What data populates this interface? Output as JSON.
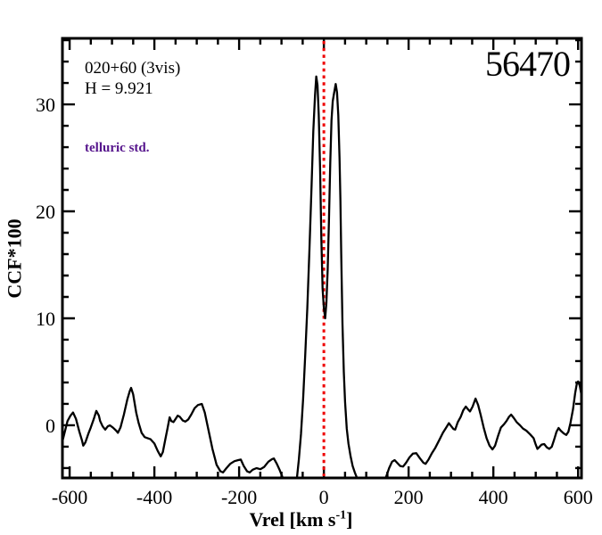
{
  "figure": {
    "annotations": {
      "target_label": "020+60 (3vis)",
      "magnitude_label": "H = 9.921",
      "classification_label": "telluric std.",
      "mjd_label": "56470"
    },
    "colors": {
      "background": "#ffffff",
      "curve": "#000000",
      "frame": "#000000",
      "text": "#000000",
      "red_line": "#ee0000",
      "classification_text": "#55148c"
    }
  },
  "chart_data": {
    "type": "line",
    "title": "",
    "ylabel": "CCF*100",
    "xlabel_parts": {
      "main": "Vrel [km s",
      "sup": "-1",
      "end": "]"
    },
    "xlim": [
      -617,
      608
    ],
    "ylim": [
      -4.92,
      36.17
    ],
    "x_major_ticks": [
      -600,
      -400,
      -200,
      0,
      200,
      400,
      600
    ],
    "x_tick_labels": [
      "-600",
      "-400",
      "-200",
      "0",
      "200",
      "400",
      "600"
    ],
    "x_minor_step": 50,
    "y_major_ticks": [
      0,
      10,
      20,
      30
    ],
    "y_tick_labels": [
      "0",
      "10",
      "20",
      "30"
    ],
    "y_minor_step": 2,
    "grid": false,
    "legend": null,
    "red_dotted_line_x": 0,
    "series": [
      {
        "name": "ccf",
        "points": [
          [
            -617,
            -1.5
          ],
          [
            -612,
            -0.7
          ],
          [
            -605,
            0.4
          ],
          [
            -598,
            0.9
          ],
          [
            -592,
            1.2
          ],
          [
            -585,
            0.6
          ],
          [
            -577,
            -0.6
          ],
          [
            -571,
            -1.4
          ],
          [
            -568,
            -1.9
          ],
          [
            -563,
            -1.6
          ],
          [
            -556,
            -0.8
          ],
          [
            -550,
            -0.2
          ],
          [
            -543,
            0.6
          ],
          [
            -537,
            1.35
          ],
          [
            -531,
            0.9
          ],
          [
            -528,
            0.4
          ],
          [
            -522,
            -0.1
          ],
          [
            -516,
            -0.4
          ],
          [
            -510,
            -0.1
          ],
          [
            -505,
            0
          ],
          [
            -498,
            -0.2
          ],
          [
            -490,
            -0.5
          ],
          [
            -486,
            -0.7
          ],
          [
            -480,
            -0.2
          ],
          [
            -472,
            1
          ],
          [
            -464,
            2.4
          ],
          [
            -458,
            3.2
          ],
          [
            -455,
            3.5
          ],
          [
            -450,
            2.9
          ],
          [
            -443,
            1.2
          ],
          [
            -437,
            0.2
          ],
          [
            -430,
            -0.7
          ],
          [
            -423,
            -1.1
          ],
          [
            -416,
            -1.2
          ],
          [
            -409,
            -1.3
          ],
          [
            -400,
            -1.7
          ],
          [
            -392,
            -2.4
          ],
          [
            -385,
            -2.9
          ],
          [
            -380,
            -2.5
          ],
          [
            -374,
            -1.3
          ],
          [
            -369,
            -0.3
          ],
          [
            -364,
            0.75
          ],
          [
            -360,
            0.4
          ],
          [
            -355,
            0.3
          ],
          [
            -350,
            0.6
          ],
          [
            -345,
            0.9
          ],
          [
            -340,
            0.8
          ],
          [
            -333,
            0.45
          ],
          [
            -327,
            0.35
          ],
          [
            -320,
            0.55
          ],
          [
            -313,
            1
          ],
          [
            -305,
            1.6
          ],
          [
            -297,
            1.9
          ],
          [
            -288,
            2
          ],
          [
            -281,
            1.2
          ],
          [
            -273,
            -0.3
          ],
          [
            -263,
            -2.2
          ],
          [
            -253,
            -3.7
          ],
          [
            -244,
            -4.3
          ],
          [
            -238,
            -4.4
          ],
          [
            -230,
            -4
          ],
          [
            -221,
            -3.6
          ],
          [
            -211,
            -3.35
          ],
          [
            -202,
            -3.25
          ],
          [
            -196,
            -3.2
          ],
          [
            -189,
            -3.8
          ],
          [
            -181,
            -4.3
          ],
          [
            -175,
            -4.4
          ],
          [
            -168,
            -4.15
          ],
          [
            -159,
            -4
          ],
          [
            -150,
            -4.1
          ],
          [
            -141,
            -3.9
          ],
          [
            -131,
            -3.4
          ],
          [
            -122,
            -3.15
          ],
          [
            -118,
            -3.1
          ],
          [
            -111,
            -3.6
          ],
          [
            -104,
            -4.2
          ],
          [
            -99,
            -4.7
          ],
          [
            -91,
            -5.7
          ],
          [
            -82,
            -6.4
          ],
          [
            -71,
            -6.3
          ],
          [
            -64,
            -5.1
          ],
          [
            -59,
            -3.2
          ],
          [
            -54,
            -0.8
          ],
          [
            -49,
            2.5
          ],
          [
            -44,
            6.5
          ],
          [
            -39,
            11
          ],
          [
            -34,
            16.5
          ],
          [
            -29,
            22.5
          ],
          [
            -25,
            27.5
          ],
          [
            -21,
            30.8
          ],
          [
            -18,
            32.6
          ],
          [
            -15,
            31.8
          ],
          [
            -12,
            29
          ],
          [
            -9,
            24
          ],
          [
            -6,
            17.5
          ],
          [
            -3,
            12.8
          ],
          [
            0,
            11
          ],
          [
            3,
            10
          ],
          [
            6,
            11.5
          ],
          [
            9,
            14.5
          ],
          [
            12,
            19
          ],
          [
            15,
            24.5
          ],
          [
            18,
            28.5
          ],
          [
            21,
            30.3
          ],
          [
            24,
            31
          ],
          [
            28,
            31.9
          ],
          [
            31,
            31.1
          ],
          [
            34,
            29
          ],
          [
            37,
            25
          ],
          [
            39,
            21
          ],
          [
            41,
            16
          ],
          [
            44,
            9.5
          ],
          [
            47,
            5
          ],
          [
            50,
            2.2
          ],
          [
            54,
            -0.3
          ],
          [
            58,
            -1.7
          ],
          [
            63,
            -2.9
          ],
          [
            68,
            -3.8
          ],
          [
            73,
            -4.4
          ],
          [
            78,
            -4.9
          ],
          [
            84,
            -5.7
          ],
          [
            95,
            -6.7
          ],
          [
            110,
            -7
          ],
          [
            125,
            -6.6
          ],
          [
            138,
            -5.7
          ],
          [
            147,
            -4.8
          ],
          [
            154,
            -4
          ],
          [
            161,
            -3.4
          ],
          [
            167,
            -3.25
          ],
          [
            173,
            -3.5
          ],
          [
            180,
            -3.8
          ],
          [
            187,
            -3.85
          ],
          [
            194,
            -3.5
          ],
          [
            202,
            -3
          ],
          [
            210,
            -2.65
          ],
          [
            218,
            -2.6
          ],
          [
            227,
            -3.1
          ],
          [
            235,
            -3.5
          ],
          [
            240,
            -3.6
          ],
          [
            247,
            -3.2
          ],
          [
            255,
            -2.6
          ],
          [
            263,
            -2.1
          ],
          [
            272,
            -1.4
          ],
          [
            281,
            -0.7
          ],
          [
            289,
            -0.2
          ],
          [
            295,
            0.2
          ],
          [
            301,
            -0.1
          ],
          [
            306,
            -0.35
          ],
          [
            310,
            -0.4
          ],
          [
            316,
            0.3
          ],
          [
            323,
            0.8
          ],
          [
            329,
            1.4
          ],
          [
            335,
            1.75
          ],
          [
            340,
            1.5
          ],
          [
            345,
            1.3
          ],
          [
            351,
            1.75
          ],
          [
            358,
            2.5
          ],
          [
            364,
            1.9
          ],
          [
            370,
            1
          ],
          [
            377,
            -0.2
          ],
          [
            384,
            -1.2
          ],
          [
            391,
            -1.9
          ],
          [
            398,
            -2.25
          ],
          [
            404,
            -1.9
          ],
          [
            411,
            -1
          ],
          [
            418,
            -0.2
          ],
          [
            425,
            0.1
          ],
          [
            431,
            0.4
          ],
          [
            437,
            0.8
          ],
          [
            442,
            1
          ],
          [
            448,
            0.7
          ],
          [
            455,
            0.3
          ],
          [
            463,
            0
          ],
          [
            470,
            -0.3
          ],
          [
            478,
            -0.5
          ],
          [
            487,
            -0.85
          ],
          [
            495,
            -1.2
          ],
          [
            500,
            -1.8
          ],
          [
            504,
            -2.2
          ],
          [
            509,
            -2
          ],
          [
            514,
            -1.8
          ],
          [
            520,
            -1.75
          ],
          [
            526,
            -2.05
          ],
          [
            532,
            -2.2
          ],
          [
            538,
            -2
          ],
          [
            543,
            -1.4
          ],
          [
            549,
            -0.6
          ],
          [
            554,
            -0.25
          ],
          [
            559,
            -0.5
          ],
          [
            566,
            -0.75
          ],
          [
            572,
            -0.9
          ],
          [
            577,
            -0.6
          ],
          [
            582,
            0.2
          ],
          [
            588,
            1.5
          ],
          [
            593,
            3
          ],
          [
            597,
            3.9
          ],
          [
            600,
            4.1
          ],
          [
            604,
            3.7
          ],
          [
            608,
            2.8
          ]
        ]
      }
    ]
  }
}
